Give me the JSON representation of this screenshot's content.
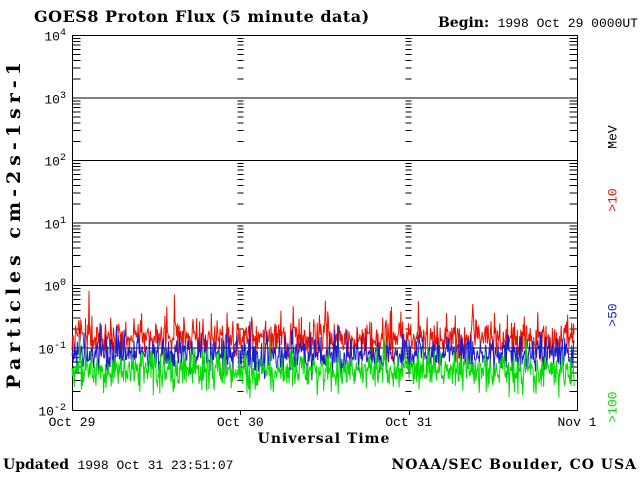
{
  "header": {
    "title": "GOES8 Proton Flux (5 minute data)",
    "begin_label": "Begin:",
    "begin_value": "1998 Oct 29 0000UT"
  },
  "footer": {
    "updated_label": "Updated",
    "updated_value": "1998 Oct 31 23:51:07",
    "credit": "NOAA/SEC Boulder, CO USA"
  },
  "chart_data": {
    "type": "line",
    "title": "GOES8 Proton Flux (5 minute data)",
    "xlabel": "Universal Time",
    "ylabel": "Particles cm-2s-1sr-1",
    "y_scale": "log10",
    "ylim": [
      0.01,
      10000
    ],
    "y_tick_exponents": [
      4,
      3,
      2,
      1,
      0,
      -1,
      -2
    ],
    "x_ticks": [
      "Oct 29",
      "Oct 30",
      "Oct 31",
      "Nov 1"
    ],
    "days": 3,
    "points_per_day": 288,
    "data_end_fraction": 0.994,
    "grid": {
      "horizontal": "solid black line at every decade",
      "vertical": "columns of minor log-tick dashes at each day boundary",
      "minor_ticks": "log minors 2-9 on left and right axes"
    },
    "legend": {
      "position": "right, rotated 90deg",
      "unit": "MeV",
      "unit_color": "#000000"
    },
    "seed": 19981029,
    "series": [
      {
        "name": ">10",
        "legend": ">10 MeV",
        "color": "#ee1100",
        "log10_base": -0.86,
        "log10_sigma": 0.15,
        "spike_prob": 0.07,
        "spike_max": 0.42,
        "approx_range": [
          0.08,
          0.6
        ]
      },
      {
        "name": ">50",
        "legend": ">50",
        "color": "#1c1ccd",
        "log10_base": -1.11,
        "log10_sigma": 0.14,
        "spike_prob": 0.05,
        "spike_max": 0.3,
        "approx_range": [
          0.04,
          0.2
        ]
      },
      {
        "name": ">100",
        "legend": ">100",
        "color": "#00dd00",
        "log10_base": -1.38,
        "log10_sigma": 0.15,
        "spike_prob": 0.05,
        "spike_max": 0.3,
        "approx_range": [
          0.015,
          0.1
        ]
      }
    ]
  }
}
